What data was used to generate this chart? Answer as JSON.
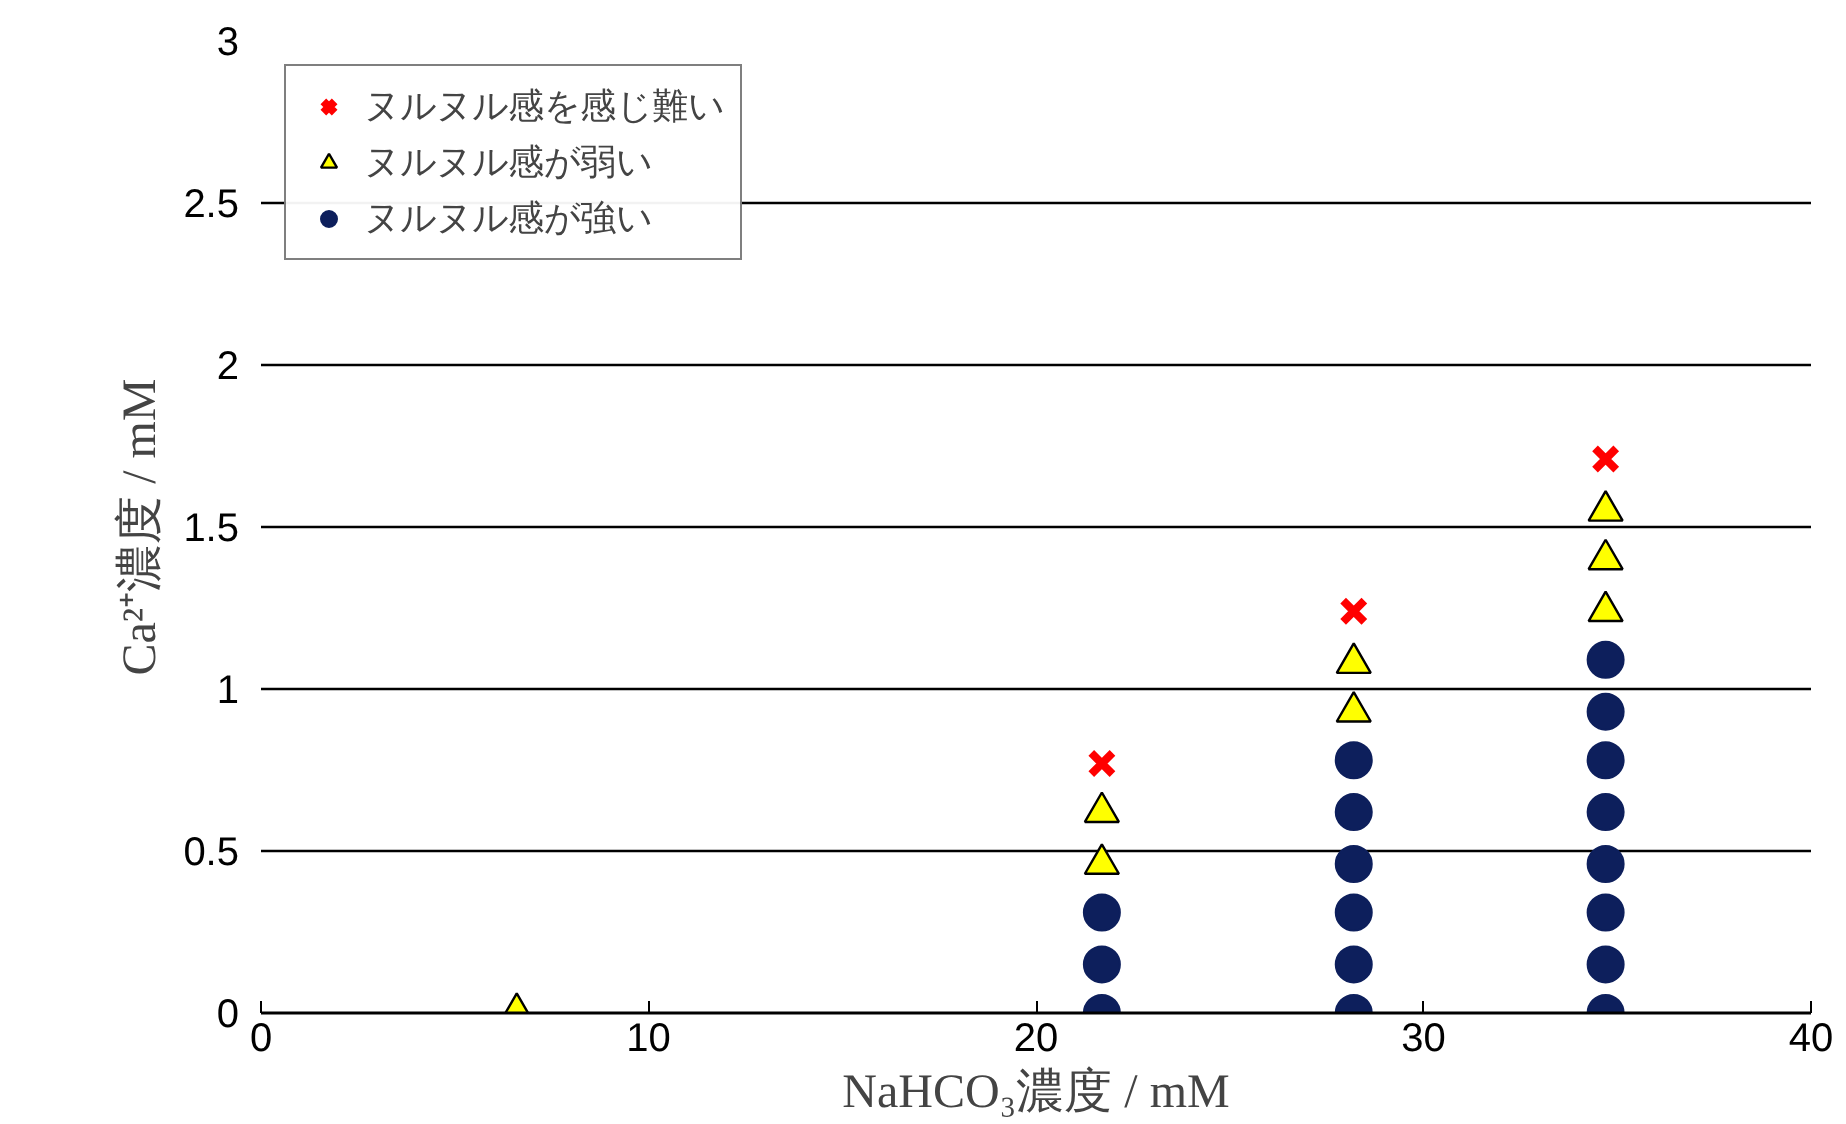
{
  "chart_data": {
    "type": "scatter",
    "xlabel": "NaHCO₃濃度 / mM",
    "ylabel": "Ca²⁺濃度 / mM",
    "xlim": [
      0,
      40
    ],
    "xticks": [
      0,
      10,
      20,
      30,
      40
    ],
    "ylim": [
      0,
      3
    ],
    "yticks": [
      0,
      0.5,
      1,
      1.5,
      2,
      2.5,
      3
    ],
    "grid": "y",
    "legend": "top left",
    "series": [
      {
        "name": "ヌルヌル感を感じ難い",
        "color": "#ff0000",
        "marker": "cross",
        "x": [
          21.7,
          28.2,
          34.7
        ],
        "values": [
          0.77,
          1.24,
          1.71
        ]
      },
      {
        "name": "ヌルヌル感が弱い",
        "color": "#ffff00",
        "marker": "triangle",
        "x": [
          6.6,
          21.7,
          21.7,
          28.2,
          28.2,
          34.7,
          34.7,
          34.7
        ],
        "values": [
          0,
          0.46,
          0.62,
          0.93,
          1.08,
          1.24,
          1.4,
          1.55
        ]
      },
      {
        "name": "ヌルヌル感が強い",
        "color": "#0d1f5c",
        "marker": "circle",
        "x": [
          21.7,
          21.7,
          21.7,
          28.2,
          28.2,
          28.2,
          28.2,
          28.2,
          28.2,
          34.7,
          34.7,
          34.7,
          34.7,
          34.7,
          34.7,
          34.7,
          34.7
        ],
        "values": [
          0,
          0.15,
          0.31,
          0,
          0.15,
          0.31,
          0.46,
          0.62,
          0.78,
          0,
          0.15,
          0.31,
          0.46,
          0.62,
          0.78,
          0.93,
          1.09
        ]
      }
    ]
  }
}
